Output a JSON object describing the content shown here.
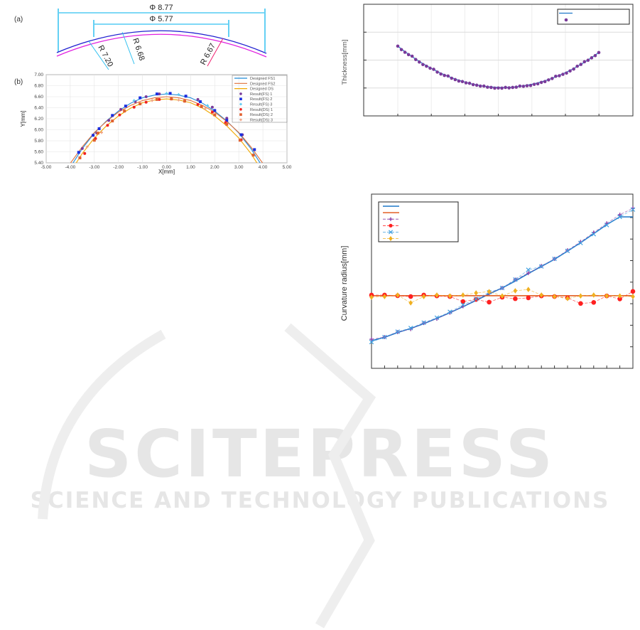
{
  "watermark": {
    "brand": "SCITEPRESS",
    "tagline": "SCIENCE AND TECHNOLOGY PUBLICATIONS"
  },
  "fig_a": {
    "label": "(a)",
    "dim_outer": "Φ 8.77",
    "dim_inner": "Φ 5.77",
    "r1": "R 7.20",
    "r2": "R 6.68",
    "r3": "R 6.67"
  },
  "chart_data": [
    {
      "type": "line",
      "panel_label": "(b)",
      "xlabel": "X[mm]",
      "ylabel": "Y[mm]",
      "xlim": [
        -5,
        5
      ],
      "ylim": [
        5.4,
        7.0
      ],
      "grid": true,
      "legend": "top-right",
      "xticks": [
        "-5.00",
        "-4.00",
        "-3.00",
        "-2.00",
        "-1.00",
        "0.00",
        "1.00",
        "2.00",
        "3.00",
        "4.00",
        "5.00"
      ],
      "yticks": [
        "5.40",
        "5.60",
        "5.80",
        "6.00",
        "6.20",
        "6.40",
        "6.60",
        "6.80",
        "7.00"
      ],
      "x": [
        -4,
        -3.5,
        -3,
        -2.5,
        -2,
        -1.5,
        -1,
        -0.5,
        0,
        0.5,
        1,
        1.5,
        2,
        2.5,
        3,
        3.5,
        4
      ],
      "series": [
        {
          "name": "Designed FS1",
          "color": "#1f8ad8",
          "kind": "line",
          "values": [
            5.32,
            5.66,
            5.94,
            6.16,
            6.34,
            6.48,
            6.58,
            6.63,
            6.65,
            6.63,
            6.58,
            6.48,
            6.34,
            6.16,
            5.94,
            5.66,
            5.32
          ]
        },
        {
          "name": "Designed FS2",
          "color": "#e0703a",
          "kind": "line",
          "values": [
            5.39,
            5.69,
            5.95,
            6.15,
            6.32,
            6.44,
            6.53,
            6.58,
            6.6,
            6.58,
            6.53,
            6.44,
            6.32,
            6.15,
            5.95,
            5.69,
            5.39
          ]
        },
        {
          "name": "Designed DS",
          "color": "#f0a800",
          "kind": "line",
          "values": [
            5.23,
            5.57,
            5.85,
            6.07,
            6.25,
            6.39,
            6.49,
            6.54,
            6.56,
            6.54,
            6.49,
            6.39,
            6.25,
            6.07,
            5.85,
            5.57,
            5.23
          ]
        },
        {
          "name": "Result(FS) 1",
          "color": "#7a3a9a",
          "kind": "circle",
          "points": [
            [
              -3.5,
              5.66
            ],
            [
              -2.9,
              5.94
            ],
            [
              -2.4,
              6.17
            ],
            [
              -1.9,
              6.37
            ],
            [
              -1.3,
              6.51
            ],
            [
              -0.85,
              6.6
            ],
            [
              -0.3,
              6.65
            ],
            [
              0.8,
              6.61
            ],
            [
              1.3,
              6.55
            ],
            [
              1.9,
              6.41
            ],
            [
              2.5,
              6.21
            ],
            [
              3.15,
              5.91
            ]
          ]
        },
        {
          "name": "Result(FS) 2",
          "color": "#1a2ee0",
          "kind": "square",
          "points": [
            [
              -3.65,
              5.59
            ],
            [
              -3.05,
              5.9
            ],
            [
              -2.8,
              6.02
            ],
            [
              -2.25,
              6.26
            ],
            [
              -1.7,
              6.43
            ],
            [
              -1.1,
              6.58
            ],
            [
              -0.4,
              6.65
            ],
            [
              0.15,
              6.66
            ],
            [
              0.8,
              6.61
            ],
            [
              1.4,
              6.51
            ],
            [
              2.0,
              6.35
            ],
            [
              2.5,
              6.17
            ],
            [
              3.1,
              5.91
            ],
            [
              3.65,
              5.64
            ]
          ]
        },
        {
          "name": "Result(FS) 3",
          "color": "#5ac8f0",
          "kind": "plus",
          "points": [
            [
              -1.35,
              6.53
            ],
            [
              0.0,
              6.66
            ],
            [
              0.5,
              6.64
            ],
            [
              1.7,
              6.44
            ]
          ]
        },
        {
          "name": "Result(DS) 1",
          "color": "#f02020",
          "kind": "circle",
          "points": [
            [
              -3.4,
              5.57
            ],
            [
              -2.95,
              5.84
            ],
            [
              -2.45,
              6.08
            ],
            [
              -1.95,
              6.27
            ],
            [
              -1.35,
              6.41
            ],
            [
              -0.85,
              6.5
            ],
            [
              -0.3,
              6.55
            ],
            [
              0.2,
              6.56
            ],
            [
              0.75,
              6.52
            ],
            [
              1.3,
              6.46
            ],
            [
              1.9,
              6.32
            ],
            [
              2.45,
              6.13
            ],
            [
              3.1,
              5.82
            ]
          ]
        },
        {
          "name": "Result(DS) 2",
          "color": "#e06030",
          "kind": "square",
          "points": [
            [
              -3.6,
              5.49
            ],
            [
              -3.0,
              5.81
            ],
            [
              -2.85,
              5.94
            ],
            [
              -2.25,
              6.16
            ],
            [
              -1.75,
              6.34
            ],
            [
              -1.1,
              6.47
            ],
            [
              -0.4,
              6.55
            ],
            [
              0.2,
              6.56
            ],
            [
              0.75,
              6.52
            ],
            [
              1.45,
              6.42
            ],
            [
              2.0,
              6.27
            ],
            [
              2.5,
              6.1
            ],
            [
              3.05,
              5.81
            ],
            [
              3.6,
              5.54
            ]
          ]
        },
        {
          "name": "Result(DS) 3",
          "color": "#f0a080",
          "kind": "plus",
          "points": [
            [
              -3.3,
              5.69
            ],
            [
              -2.7,
              5.95
            ],
            [
              -0.6,
              6.53
            ],
            [
              0.5,
              6.54
            ],
            [
              1.6,
              6.38
            ]
          ]
        }
      ]
    },
    {
      "type": "scatter",
      "ylabel": "Thickness[mm]",
      "grid": true,
      "legend": "top-right",
      "note": "",
      "series": [
        {
          "color": "#1f78c8",
          "kind": "line",
          "values": [
            2.5,
            2.3,
            2.12,
            1.95,
            1.8,
            1.66,
            1.53,
            1.42,
            1.32,
            1.24,
            1.16,
            1.11,
            1.06,
            1.04,
            1.02,
            1.02,
            1.03,
            1.06,
            1.1,
            1.15,
            1.22,
            1.3,
            1.4,
            1.51,
            1.63,
            1.77,
            1.92,
            2.09,
            2.27
          ]
        },
        {
          "color": "#7a3a9a",
          "kind": "circle",
          "values": [
            2.5,
            2.28,
            2.14,
            1.93,
            1.78,
            1.67,
            1.5,
            1.43,
            1.3,
            1.23,
            1.17,
            1.1,
            1.07,
            1.02,
            1.0,
            1.02,
            1.02,
            1.07,
            1.08,
            1.13,
            1.2,
            1.29,
            1.42,
            1.49,
            1.61,
            1.78,
            1.94,
            2.08,
            2.27
          ]
        }
      ]
    },
    {
      "type": "line",
      "ylabel": "Curvature radius[mm]",
      "grid": false,
      "legend": "top-left",
      "series": [
        {
          "color": "#1f78c8",
          "kind": "line",
          "values": [
            1.28,
            1.44,
            1.66,
            1.85,
            2.07,
            2.32,
            2.58,
            2.86,
            3.15,
            3.45,
            3.73,
            4.05,
            4.4,
            4.73,
            5.06,
            5.44,
            5.83,
            6.25,
            6.67,
            7.03,
            7.03
          ]
        },
        {
          "color": "#e05010",
          "kind": "line",
          "values": [
            3.37,
            3.37,
            3.37,
            3.37,
            3.37,
            3.37,
            3.37,
            3.37,
            3.37,
            3.37,
            3.37,
            3.37,
            3.37,
            3.37,
            3.37,
            3.37,
            3.37,
            3.37,
            3.37,
            3.37,
            3.37
          ]
        },
        {
          "color": "#8a40a8",
          "kind": "plus",
          "values": [
            1.35,
            1.45,
            1.68,
            1.82,
            2.1,
            2.3,
            2.58,
            2.88,
            3.18,
            3.48,
            3.73,
            4.12,
            4.42,
            4.75,
            5.08,
            5.48,
            5.87,
            6.3,
            6.73,
            7.13,
            7.43
          ]
        },
        {
          "color": "#ff2020",
          "kind": "circle",
          "values": [
            3.4,
            3.4,
            3.37,
            3.33,
            3.4,
            3.36,
            3.33,
            3.1,
            3.2,
            3.07,
            3.3,
            3.23,
            3.27,
            3.36,
            3.33,
            3.27,
            3.01,
            3.06,
            3.36,
            3.22,
            3.57
          ]
        },
        {
          "color": "#40a0e0",
          "kind": "x",
          "values": [
            1.22,
            1.45,
            1.7,
            1.87,
            2.12,
            2.35,
            2.62,
            2.95,
            3.22,
            3.53,
            3.73,
            4.12,
            4.57,
            4.73,
            5.08,
            5.45,
            5.82,
            6.23,
            6.65,
            7.03,
            7.37
          ]
        },
        {
          "color": "#f0b020",
          "kind": "diamond",
          "values": [
            3.3,
            3.33,
            3.4,
            3.04,
            3.33,
            3.4,
            3.36,
            3.4,
            3.5,
            3.56,
            3.36,
            3.6,
            3.66,
            3.4,
            3.33,
            3.24,
            3.36,
            3.4,
            3.36,
            3.36,
            3.33
          ]
        }
      ]
    }
  ]
}
